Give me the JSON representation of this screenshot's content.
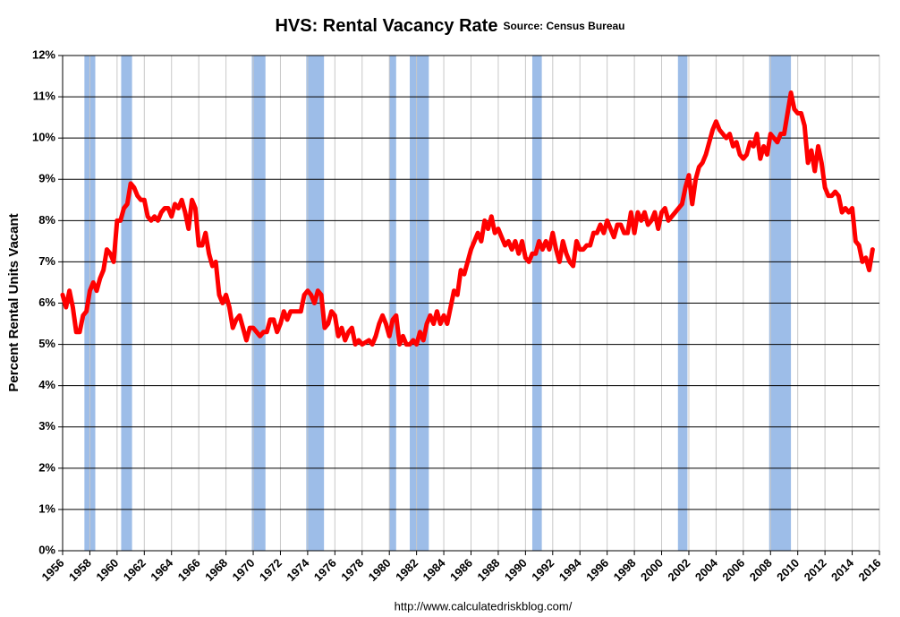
{
  "chart_data": {
    "type": "line",
    "title": "HVS: Rental Vacancy Rate",
    "subtitle": "Source: Census Bureau",
    "y_label": "Percent Rental Units Vacant",
    "footer": "http://www.calculatedriskblog.com/",
    "color": "#ff0000",
    "recession_color": "#9dbde8",
    "grid": true,
    "recessions": [
      [
        1957.6,
        1958.4
      ],
      [
        1960.3,
        1961.1
      ],
      [
        1969.9,
        1970.9
      ],
      [
        1973.9,
        1975.2
      ],
      [
        1980.0,
        1980.5
      ],
      [
        1981.5,
        1982.9
      ],
      [
        1990.5,
        1991.2
      ],
      [
        2001.2,
        2001.9
      ],
      [
        2007.9,
        2009.5
      ]
    ],
    "xlim": [
      1956,
      2016
    ],
    "xticks": [
      1956,
      1958,
      1960,
      1962,
      1964,
      1966,
      1968,
      1970,
      1972,
      1974,
      1976,
      1978,
      1980,
      1982,
      1984,
      1986,
      1988,
      1990,
      1992,
      1994,
      1996,
      1998,
      2000,
      2002,
      2004,
      2006,
      2008,
      2010,
      2012,
      2014,
      2016
    ],
    "ylim": [
      0,
      12
    ],
    "yticks": [
      {
        "value": 0,
        "label": "0%"
      },
      {
        "value": 1,
        "label": "1%"
      },
      {
        "value": 2,
        "label": "2%"
      },
      {
        "value": 3,
        "label": "3%"
      },
      {
        "value": 4,
        "label": "4%"
      },
      {
        "value": 5,
        "label": "5%"
      },
      {
        "value": 6,
        "label": "6%"
      },
      {
        "value": 7,
        "label": "7%"
      },
      {
        "value": 8,
        "label": "8%"
      },
      {
        "value": 9,
        "label": "9%"
      },
      {
        "value": 10,
        "label": "10%"
      },
      {
        "value": 11,
        "label": "11%"
      },
      {
        "value": 12,
        "label": "12%"
      }
    ],
    "x": [
      1956.0,
      1956.25,
      1956.5,
      1956.75,
      1957.0,
      1957.25,
      1957.5,
      1957.75,
      1958.0,
      1958.25,
      1958.5,
      1958.75,
      1959.0,
      1959.25,
      1959.5,
      1959.75,
      1960.0,
      1960.25,
      1960.5,
      1960.75,
      1961.0,
      1961.25,
      1961.5,
      1961.75,
      1962.0,
      1962.25,
      1962.5,
      1962.75,
      1963.0,
      1963.25,
      1963.5,
      1963.75,
      1964.0,
      1964.25,
      1964.5,
      1964.75,
      1965.0,
      1965.25,
      1965.5,
      1965.75,
      1966.0,
      1966.25,
      1966.5,
      1966.75,
      1967.0,
      1967.25,
      1967.5,
      1967.75,
      1968.0,
      1968.25,
      1968.5,
      1968.75,
      1969.0,
      1969.25,
      1969.5,
      1969.75,
      1970.0,
      1970.5,
      1970.75,
      1971.0,
      1971.25,
      1971.5,
      1971.75,
      1972.0,
      1972.25,
      1972.5,
      1972.75,
      1973.0,
      1973.5,
      1973.75,
      1974.0,
      1974.25,
      1974.5,
      1974.75,
      1975.0,
      1975.25,
      1975.5,
      1975.75,
      1976.0,
      1976.25,
      1976.5,
      1976.75,
      1977.0,
      1977.25,
      1977.5,
      1977.75,
      1978.0,
      1978.5,
      1978.75,
      1979.0,
      1979.25,
      1979.5,
      1979.75,
      1980.0,
      1980.25,
      1980.5,
      1980.75,
      1981.0,
      1981.25,
      1981.5,
      1981.75,
      1982.0,
      1982.25,
      1982.5,
      1982.75,
      1983.0,
      1983.25,
      1983.5,
      1983.75,
      1984.0,
      1984.25,
      1984.5,
      1984.75,
      1985.0,
      1985.25,
      1985.5,
      1985.75,
      1986.0,
      1986.25,
      1986.5,
      1986.75,
      1987.0,
      1987.25,
      1987.5,
      1987.75,
      1988.0,
      1988.25,
      1988.5,
      1988.75,
      1989.0,
      1989.25,
      1989.5,
      1989.75,
      1990.0,
      1990.25,
      1990.5,
      1990.75,
      1991.0,
      1991.25,
      1991.5,
      1991.75,
      1992.0,
      1992.25,
      1992.5,
      1992.75,
      1993.0,
      1993.25,
      1993.5,
      1993.75,
      1994.0,
      1994.25,
      1994.5,
      1994.75,
      1995.0,
      1995.25,
      1995.5,
      1995.75,
      1996.0,
      1996.25,
      1996.5,
      1996.75,
      1997.0,
      1997.25,
      1997.5,
      1997.75,
      1998.0,
      1998.25,
      1998.5,
      1998.75,
      1999.0,
      1999.25,
      1999.5,
      1999.75,
      2000.0,
      2000.25,
      2000.5,
      2001.0,
      2001.25,
      2001.5,
      2001.75,
      2002.0,
      2002.25,
      2002.5,
      2002.75,
      2003.0,
      2003.25,
      2003.5,
      2003.75,
      2004.0,
      2004.25,
      2004.5,
      2004.75,
      2005.0,
      2005.25,
      2005.5,
      2005.75,
      2006.0,
      2006.25,
      2006.5,
      2006.75,
      2007.0,
      2007.25,
      2007.5,
      2007.75,
      2008.0,
      2008.25,
      2008.5,
      2008.75,
      2009.0,
      2009.25,
      2009.5,
      2009.75,
      2010.0,
      2010.25,
      2010.5,
      2010.75,
      2011.0,
      2011.25,
      2011.5,
      2011.75,
      2012.0,
      2012.25,
      2012.5,
      2012.75,
      2013.0,
      2013.25,
      2013.5,
      2013.75,
      2014.0,
      2014.25,
      2014.5,
      2014.75,
      2015.0,
      2015.25,
      2015.5
    ],
    "values": [
      6.2,
      5.9,
      6.3,
      5.9,
      5.3,
      5.3,
      5.7,
      5.8,
      6.3,
      6.5,
      6.3,
      6.6,
      6.8,
      7.3,
      7.2,
      7.0,
      8.0,
      8.0,
      8.3,
      8.4,
      8.9,
      8.8,
      8.6,
      8.5,
      8.5,
      8.1,
      8.0,
      8.1,
      8.0,
      8.2,
      8.3,
      8.3,
      8.1,
      8.4,
      8.3,
      8.5,
      8.2,
      7.8,
      8.5,
      8.3,
      7.4,
      7.4,
      7.7,
      7.2,
      6.9,
      7.0,
      6.2,
      6.0,
      6.2,
      5.9,
      5.4,
      5.6,
      5.7,
      5.4,
      5.1,
      5.4,
      5.4,
      5.2,
      5.3,
      5.3,
      5.6,
      5.6,
      5.3,
      5.5,
      5.8,
      5.6,
      5.8,
      5.8,
      5.8,
      6.2,
      6.3,
      6.2,
      6.0,
      6.3,
      6.2,
      5.4,
      5.5,
      5.8,
      5.7,
      5.2,
      5.4,
      5.1,
      5.3,
      5.4,
      5.0,
      5.1,
      5.0,
      5.1,
      5.0,
      5.2,
      5.5,
      5.7,
      5.5,
      5.2,
      5.6,
      5.7,
      5.0,
      5.2,
      5.0,
      5.0,
      5.1,
      5.0,
      5.3,
      5.1,
      5.5,
      5.7,
      5.5,
      5.8,
      5.5,
      5.7,
      5.5,
      5.9,
      6.3,
      6.2,
      6.8,
      6.7,
      7.0,
      7.3,
      7.5,
      7.7,
      7.5,
      8.0,
      7.8,
      8.1,
      7.7,
      7.8,
      7.6,
      7.4,
      7.5,
      7.3,
      7.5,
      7.2,
      7.5,
      7.1,
      7.0,
      7.2,
      7.2,
      7.5,
      7.3,
      7.5,
      7.3,
      7.7,
      7.3,
      7.0,
      7.5,
      7.2,
      7.0,
      6.9,
      7.5,
      7.3,
      7.3,
      7.4,
      7.4,
      7.7,
      7.7,
      7.9,
      7.7,
      8.0,
      7.8,
      7.6,
      7.9,
      7.9,
      7.7,
      7.7,
      8.2,
      7.7,
      8.2,
      8.0,
      8.2,
      7.9,
      8.0,
      8.2,
      7.8,
      8.2,
      8.3,
      8.0,
      8.2,
      8.3,
      8.4,
      8.8,
      9.1,
      8.4,
      9.0,
      9.3,
      9.4,
      9.6,
      9.9,
      10.2,
      10.4,
      10.2,
      10.1,
      10.0,
      10.1,
      9.8,
      9.9,
      9.6,
      9.5,
      9.6,
      9.9,
      9.8,
      10.1,
      9.5,
      9.8,
      9.6,
      10.1,
      10.0,
      9.9,
      10.1,
      10.1,
      10.6,
      11.1,
      10.7,
      10.6,
      10.6,
      10.3,
      9.4,
      9.7,
      9.2,
      9.8,
      9.4,
      8.8,
      8.6,
      8.6,
      8.7,
      8.6,
      8.2,
      8.3,
      8.2,
      8.3,
      7.5,
      7.4,
      7.0,
      7.1,
      6.8,
      7.3
    ]
  }
}
